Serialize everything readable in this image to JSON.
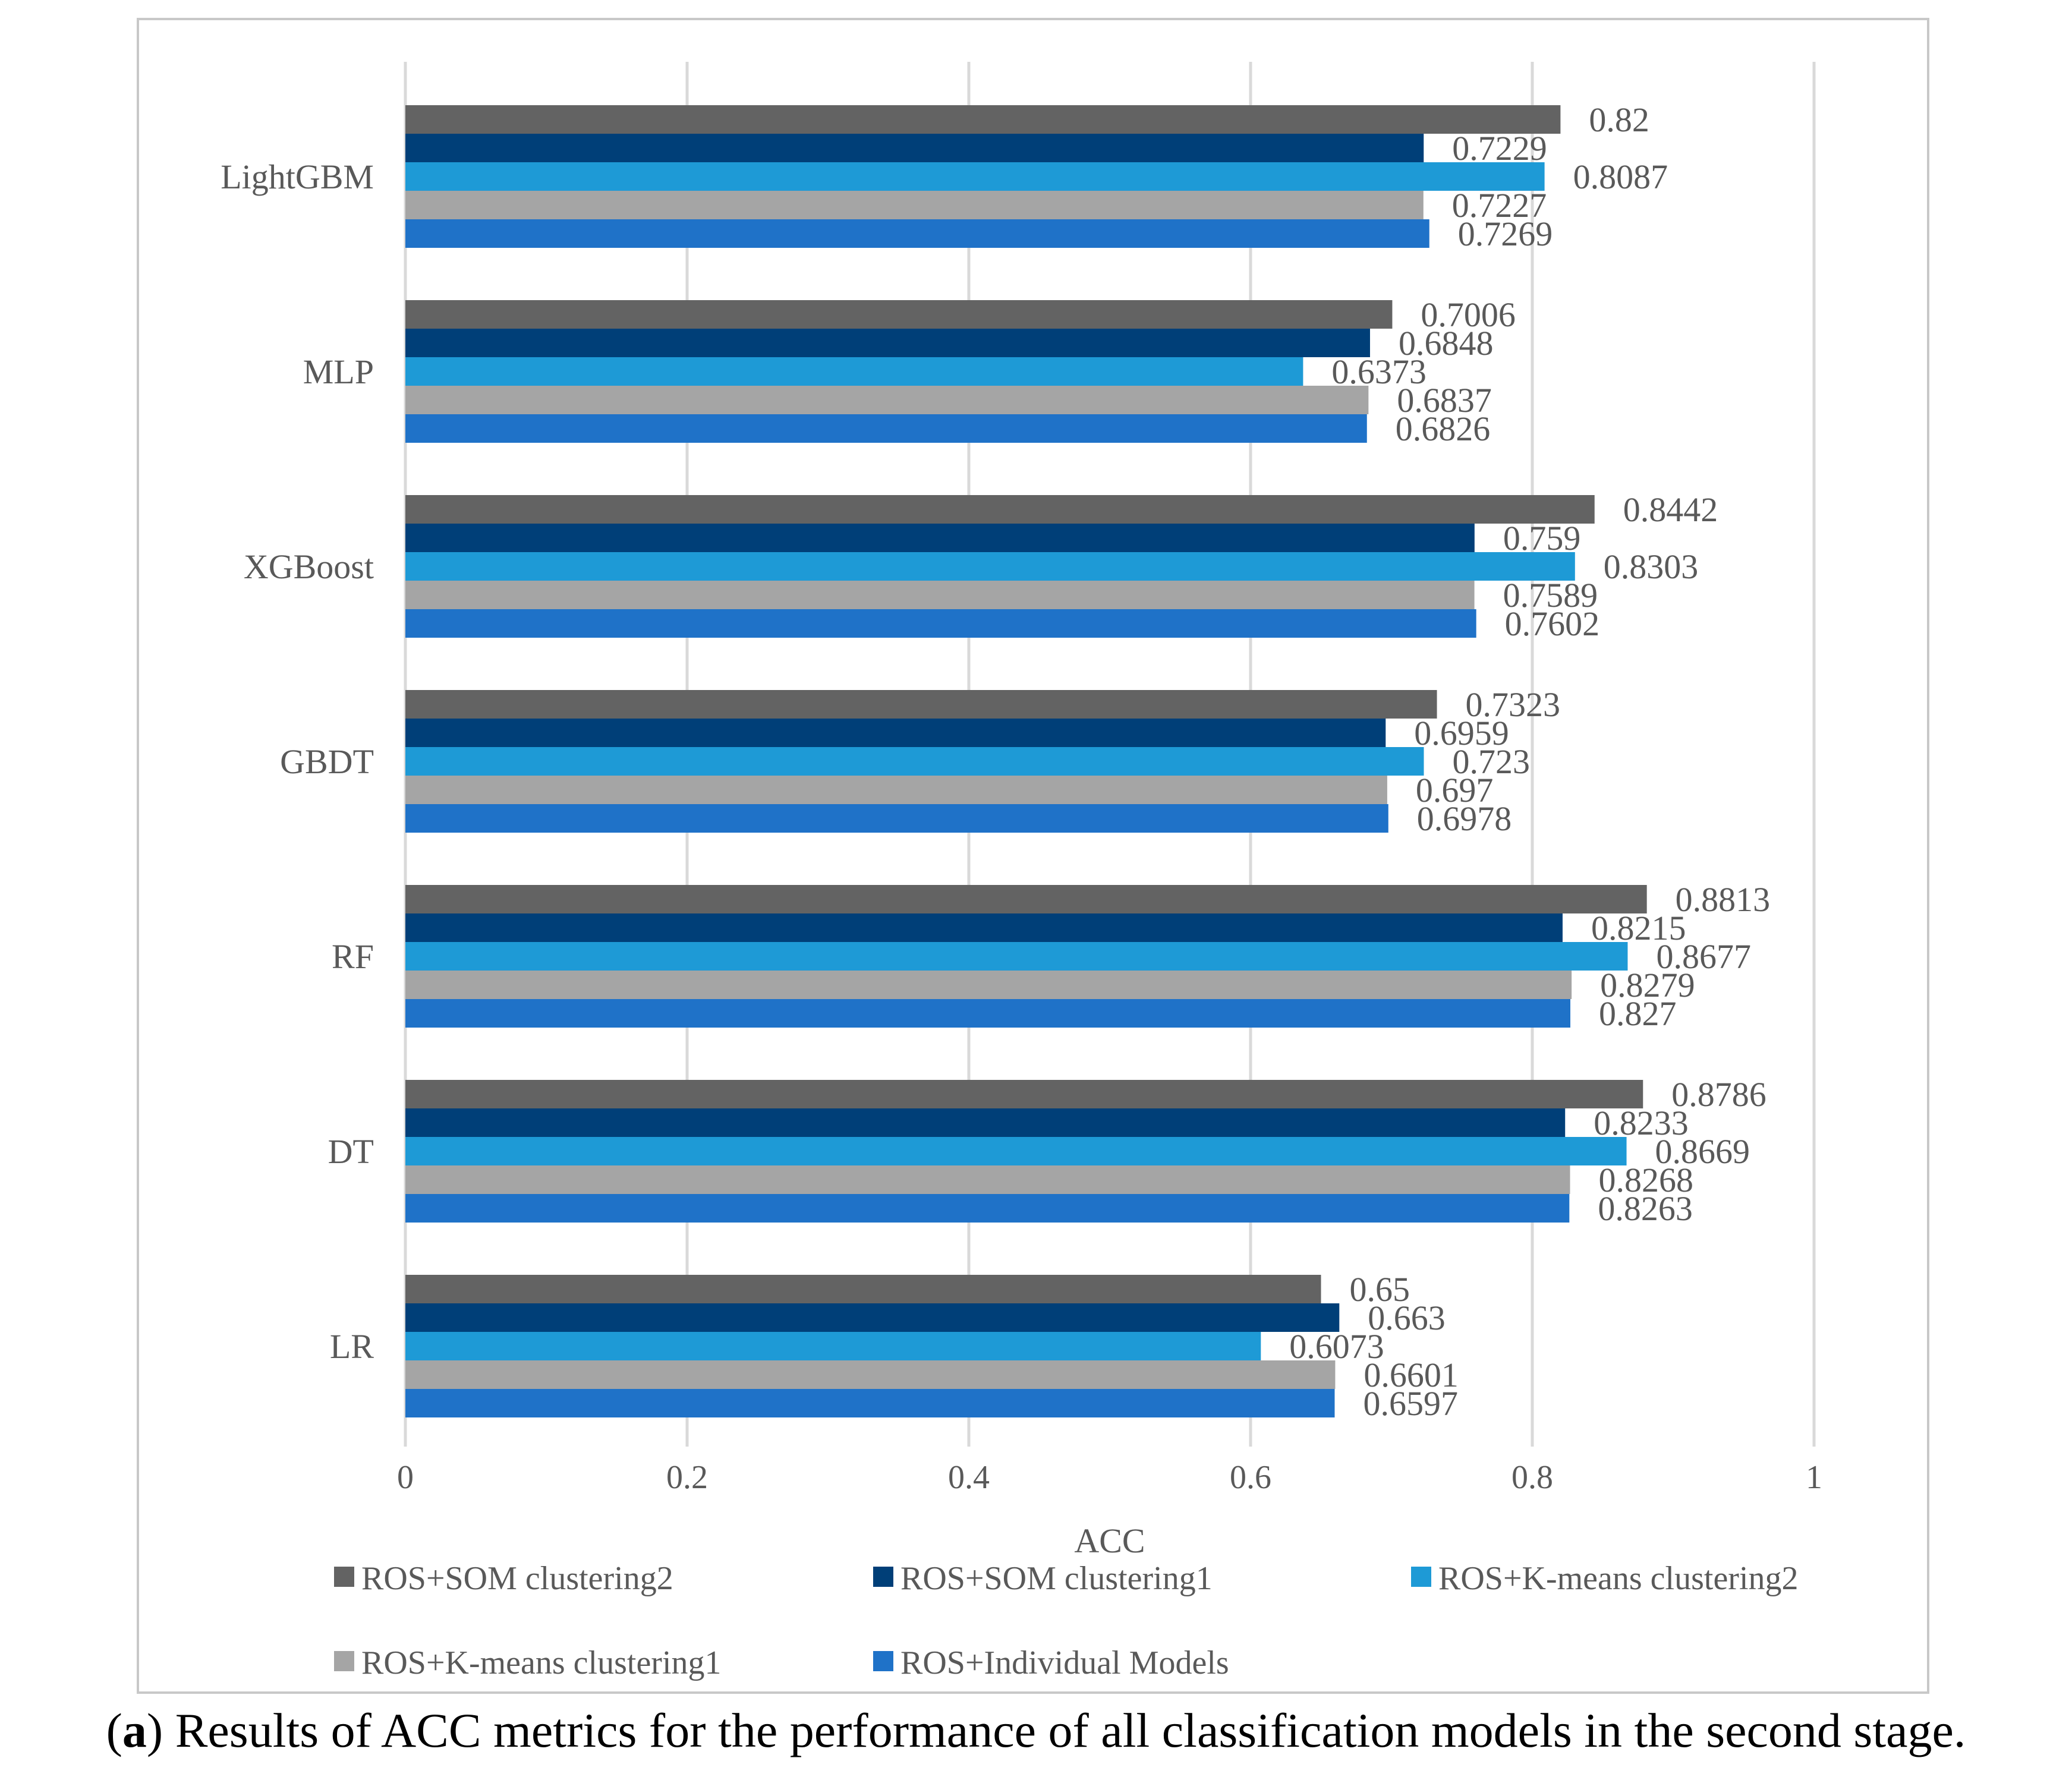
{
  "chart_data": {
    "type": "bar",
    "orientation": "horizontal",
    "xlabel": "ACC",
    "xlim": [
      0,
      1
    ],
    "xticks": [
      "0",
      "0.2",
      "0.4",
      "0.6",
      "0.8",
      "1"
    ],
    "tick_values": [
      0,
      0.2,
      0.4,
      0.6,
      0.8,
      1
    ],
    "grid": "vertical",
    "legend_position": "bottom",
    "categories": [
      "LightGBM",
      "MLP",
      "XGBoost",
      "GBDT",
      "RF",
      "DT",
      "LR"
    ],
    "series": [
      {
        "name": "ROS+SOM clustering2",
        "color": "#636363",
        "values": [
          0.82,
          0.7006,
          0.8442,
          0.7323,
          0.8813,
          0.8786,
          0.65
        ],
        "labels": [
          "0.82",
          "0.7006",
          "0.8442",
          "0.7323",
          "0.8813",
          "0.8786",
          "0.65"
        ]
      },
      {
        "name": "ROS+SOM clustering1",
        "color": "#003f78",
        "values": [
          0.7229,
          0.6848,
          0.759,
          0.6959,
          0.8215,
          0.8233,
          0.663
        ],
        "labels": [
          "0.7229",
          "0.6848",
          "0.759",
          "0.6959",
          "0.8215",
          "0.8233",
          "0.663"
        ]
      },
      {
        "name": "ROS+K-means clustering2",
        "color": "#1e9ad6",
        "values": [
          0.8087,
          0.6373,
          0.8303,
          0.723,
          0.8677,
          0.8669,
          0.6073
        ],
        "labels": [
          "0.8087",
          "0.6373",
          "0.8303",
          "0.723",
          "0.8677",
          "0.8669",
          "0.6073"
        ]
      },
      {
        "name": "ROS+K-means clustering1",
        "color": "#a5a5a5",
        "values": [
          0.7227,
          0.6837,
          0.7589,
          0.697,
          0.8279,
          0.8268,
          0.6601
        ],
        "labels": [
          "0.7227",
          "0.6837",
          "0.7589",
          "0.697",
          "0.8279",
          "0.8268",
          "0.6601"
        ]
      },
      {
        "name": "ROS+Individual Models",
        "color": "#1f72c8",
        "values": [
          0.7269,
          0.6826,
          0.7602,
          0.6978,
          0.827,
          0.8263,
          0.6597
        ],
        "labels": [
          "0.7269",
          "0.6826",
          "0.7602",
          "0.6978",
          "0.827",
          "0.8263",
          "0.6597"
        ]
      }
    ]
  },
  "caption": {
    "letter": "a",
    "open": "(",
    "close": ")",
    "text": " Results of ACC metrics for the performance of all classification models in the second stage."
  }
}
